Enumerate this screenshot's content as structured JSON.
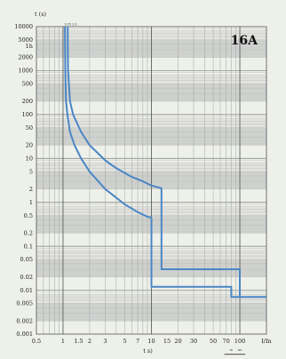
{
  "chart_data": {
    "type": "line",
    "title": "",
    "rating_label": "16A",
    "x_scale": "log",
    "y_scale": "log",
    "xlim": [
      0.5,
      200
    ],
    "ylim": [
      0.001,
      10000
    ],
    "y_axis_title": "t (s)",
    "x_axis_title": "I/In",
    "x_axis_unit": "t  s)",
    "x_axis_sub_labels": [
      "m",
      "ax"
    ],
    "top_left_note": "1.05 1.3",
    "y_ticks": [
      {
        "value": 10000,
        "label": "10000"
      },
      {
        "value": 5000,
        "label": "5000"
      },
      {
        "value": 3600,
        "label": "1h"
      },
      {
        "value": 2000,
        "label": "2000"
      },
      {
        "value": 1000,
        "label": "1000"
      },
      {
        "value": 500,
        "label": "500"
      },
      {
        "value": 200,
        "label": "200"
      },
      {
        "value": 100,
        "label": "100"
      },
      {
        "value": 50,
        "label": "50"
      },
      {
        "value": 20,
        "label": "20"
      },
      {
        "value": 10,
        "label": "10"
      },
      {
        "value": 5,
        "label": "5"
      },
      {
        "value": 2,
        "label": "2"
      },
      {
        "value": 1,
        "label": "1"
      },
      {
        "value": 0.5,
        "label": "0.5"
      },
      {
        "value": 0.2,
        "label": "0.2"
      },
      {
        "value": 0.1,
        "label": "0.1"
      },
      {
        "value": 0.05,
        "label": "0.05"
      },
      {
        "value": 0.02,
        "label": "0.02"
      },
      {
        "value": 0.01,
        "label": "0.01"
      },
      {
        "value": 0.005,
        "label": "0.005"
      },
      {
        "value": 0.002,
        "label": "0.002"
      },
      {
        "value": 0.001,
        "label": "0.001"
      }
    ],
    "x_ticks": [
      {
        "value": 0.5,
        "label": "0.5"
      },
      {
        "value": 1,
        "label": "1"
      },
      {
        "value": 1.5,
        "label": "1.5"
      },
      {
        "value": 2,
        "label": "2"
      },
      {
        "value": 3,
        "label": "3"
      },
      {
        "value": 5,
        "label": "5"
      },
      {
        "value": 7,
        "label": "7"
      },
      {
        "value": 10,
        "label": "10"
      },
      {
        "value": 15,
        "label": "15"
      },
      {
        "value": 20,
        "label": "20"
      },
      {
        "value": 30,
        "label": "30"
      },
      {
        "value": 50,
        "label": "50"
      },
      {
        "value": 70,
        "label": "70"
      },
      {
        "value": 100,
        "label": "100"
      },
      {
        "value": 200,
        "label": "I/In"
      }
    ],
    "series": [
      {
        "color": "#4a86c6",
        "points": [
          [
            1.13,
            10000
          ],
          [
            1.14,
            1000
          ],
          [
            1.2,
            200
          ],
          [
            1.3,
            100
          ],
          [
            1.6,
            40
          ],
          [
            2,
            20
          ],
          [
            3,
            9
          ],
          [
            4,
            6
          ],
          [
            6,
            3.8
          ],
          [
            8,
            3
          ],
          [
            10,
            2.4
          ],
          [
            13,
            2.1
          ],
          [
            13,
            0.03
          ],
          [
            100,
            0.03
          ],
          [
            100,
            0.007
          ],
          [
            200,
            0.007
          ]
        ]
      },
      {
        "color": "#4a86c6",
        "points": [
          [
            1.05,
            10000
          ],
          [
            1.06,
            1000
          ],
          [
            1.08,
            200
          ],
          [
            1.12,
            100
          ],
          [
            1.2,
            40
          ],
          [
            1.35,
            20
          ],
          [
            1.6,
            10
          ],
          [
            2,
            5
          ],
          [
            3,
            2
          ],
          [
            5,
            0.9
          ],
          [
            7,
            0.6
          ],
          [
            9,
            0.47
          ],
          [
            10,
            0.45
          ],
          [
            10,
            0.012
          ],
          [
            80,
            0.012
          ],
          [
            80,
            0.007
          ],
          [
            100,
            0.007
          ]
        ]
      }
    ],
    "grid": true,
    "shaded_band_colors": [
      "#cfd1cf",
      "#e2e3e0"
    ],
    "legend": "none"
  }
}
